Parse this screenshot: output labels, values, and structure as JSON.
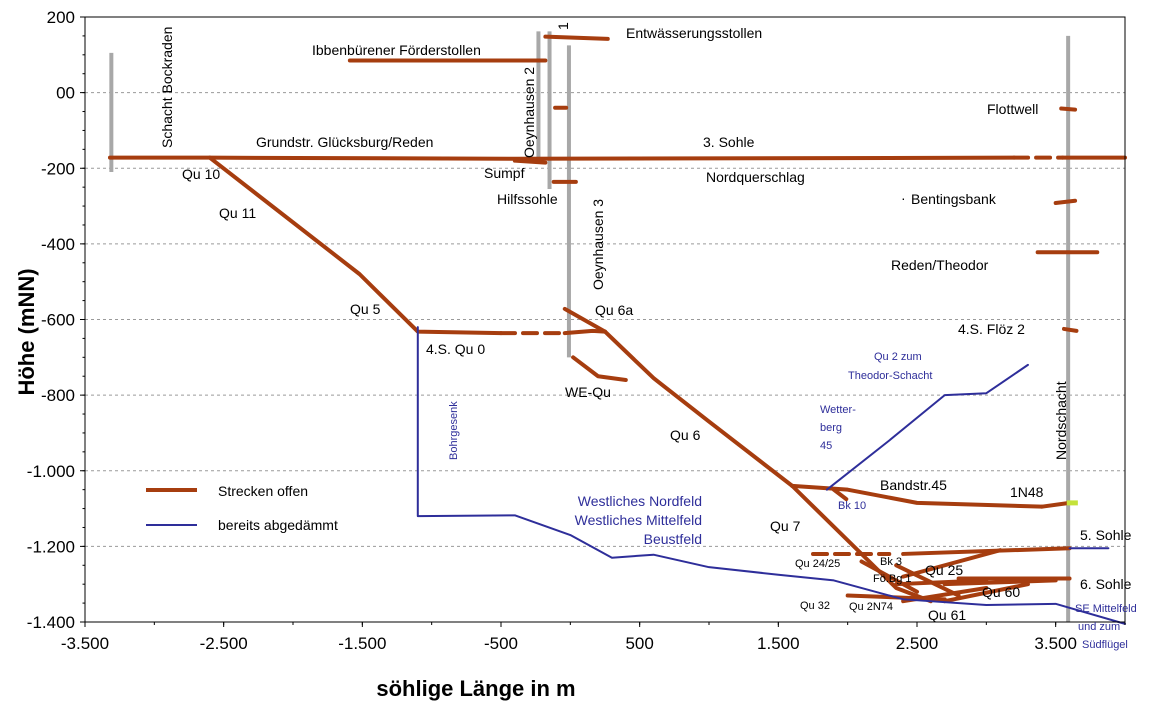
{
  "colors": {
    "open": "#a63d0f",
    "sealed": "#2e2e9a",
    "shaft": "#a8a8a8",
    "marker": "#c4e23a"
  },
  "chart_data": {
    "type": "line",
    "xlabel": "söhlige Länge in m",
    "ylabel": "Höhe (mNN)",
    "xlim": [
      -3500,
      4000
    ],
    "ylim": [
      -1400,
      200
    ],
    "grid": "horizontal dashed",
    "x_ticks": [
      -3500,
      -2500,
      -1500,
      -500,
      500,
      1500,
      2500,
      3500
    ],
    "x_tick_labels": [
      "-3.500",
      "-2.500",
      "-1.500",
      "-500",
      "500",
      "1.500",
      "2.500",
      "3.500"
    ],
    "y_ticks": [
      200,
      0,
      -200,
      -400,
      -600,
      -800,
      -1000,
      -1200,
      -1400
    ],
    "y_tick_labels": [
      "200",
      "00",
      "-200",
      "-400",
      "-600",
      "-800",
      "-1.000",
      "-1.200",
      "-1.400"
    ],
    "legend": {
      "position": "bottom-left",
      "items": [
        {
          "label": "Strecken offen",
          "series": "open"
        },
        {
          "label": "bereits abgedämmt",
          "series": "sealed"
        }
      ]
    },
    "shafts": [
      {
        "label": "Schacht Bockraden",
        "x": -3310,
        "y_top": 105,
        "y_bottom": -210
      },
      {
        "label": "Oeynhausen 2",
        "x": -230,
        "y_top": 162,
        "y_bottom": -175
      },
      {
        "label": "1",
        "x": -150,
        "y_top": 162,
        "y_bottom": -255
      },
      {
        "label": "Oeynhausen 3",
        "x": -10,
        "y_top": 125,
        "y_bottom": -700
      },
      {
        "label": "Nordschacht",
        "x": 3590,
        "y_top": 150,
        "y_bottom": -1400
      }
    ],
    "series_open": [
      {
        "label": "Ibbenbürener Förderstollen",
        "points": [
          [
            -1590,
            85
          ],
          [
            -180,
            85
          ]
        ]
      },
      {
        "label": "Entwässerungsstollen",
        "points": [
          [
            -180,
            148
          ],
          [
            270,
            142
          ]
        ]
      },
      {
        "label": "",
        "points": [
          [
            -110,
            -40
          ],
          [
            -30,
            -40
          ]
        ]
      },
      {
        "label": "Grundstr. Glücksburg/Reden",
        "points": [
          [
            -3320,
            -172
          ],
          [
            -2600,
            -172
          ],
          [
            -400,
            -175
          ],
          [
            3200,
            -172
          ]
        ]
      },
      {
        "label": "3. Sohle",
        "points": [
          [
            3200,
            -172
          ],
          [
            3550,
            -172
          ]
        ],
        "dashed": true
      },
      {
        "label": "",
        "points": [
          [
            3550,
            -172
          ],
          [
            4000,
            -172
          ]
        ]
      },
      {
        "label": "Sumpf",
        "points": [
          [
            -400,
            -180
          ],
          [
            -180,
            -185
          ]
        ]
      },
      {
        "label": "Hilfssohle",
        "points": [
          [
            -120,
            -236
          ],
          [
            40,
            -236
          ]
        ]
      },
      {
        "label": "Flottwell",
        "points": [
          [
            3540,
            -42
          ],
          [
            3640,
            -45
          ]
        ]
      },
      {
        "label": "Bentingsbank",
        "points": [
          [
            3500,
            -292
          ],
          [
            3640,
            -286
          ]
        ]
      },
      {
        "label": "Reden/Theodor",
        "points": [
          [
            3370,
            -422
          ],
          [
            3800,
            -422
          ]
        ]
      },
      {
        "label": "4.S. Flöz 2",
        "points": [
          [
            3560,
            -625
          ],
          [
            3650,
            -630
          ]
        ]
      },
      {
        "label": "Qu 10 / Qu 11 / Qu 5",
        "points": [
          [
            -2600,
            -172
          ],
          [
            -1520,
            -480
          ],
          [
            -1100,
            -632
          ],
          [
            -500,
            -636
          ]
        ]
      },
      {
        "label": "4.S. Qu 0",
        "points": [
          [
            -500,
            -636
          ],
          [
            -40,
            -636
          ]
        ],
        "dashed": true
      },
      {
        "label": "",
        "points": [
          [
            -40,
            -636
          ],
          [
            160,
            -630
          ],
          [
            250,
            -632
          ]
        ]
      },
      {
        "label": "Qu 6a",
        "points": [
          [
            -40,
            -572
          ],
          [
            250,
            -632
          ]
        ]
      },
      {
        "label": "WE-Qu",
        "points": [
          [
            20,
            -700
          ],
          [
            200,
            -750
          ],
          [
            400,
            -760
          ]
        ]
      },
      {
        "label": "Qu 6",
        "points": [
          [
            250,
            -632
          ],
          [
            600,
            -755
          ],
          [
            1000,
            -870
          ],
          [
            1600,
            -1040
          ]
        ]
      },
      {
        "label": "Bandstr.45",
        "points": [
          [
            1600,
            -1040
          ],
          [
            2000,
            -1050
          ],
          [
            2500,
            -1085
          ],
          [
            3400,
            -1095
          ]
        ]
      },
      {
        "label": "1N48",
        "points": [
          [
            3400,
            -1095
          ],
          [
            3600,
            -1085
          ]
        ]
      },
      {
        "label": "Bk 10",
        "points": [
          [
            1900,
            -1050
          ],
          [
            1990,
            -1075
          ]
        ]
      },
      {
        "label": "Qu 7",
        "points": [
          [
            1600,
            -1040
          ],
          [
            2350,
            -1310
          ],
          [
            2600,
            -1345
          ]
        ]
      },
      {
        "label": "",
        "points": [
          [
            1750,
            -1220
          ],
          [
            2300,
            -1220
          ]
        ],
        "dashed": true
      },
      {
        "label": "5. Sohle",
        "points": [
          [
            2400,
            -1220
          ],
          [
            3600,
            -1205
          ]
        ]
      },
      {
        "label": "Qu 25",
        "points": [
          [
            2400,
            -1280
          ],
          [
            3100,
            -1210
          ]
        ]
      },
      {
        "label": "Qu 24/25",
        "points": [
          [
            2100,
            -1240
          ],
          [
            2500,
            -1320
          ]
        ]
      },
      {
        "label": "Bk 3",
        "points": [
          [
            2350,
            -1250
          ],
          [
            2800,
            -1330
          ]
        ]
      },
      {
        "label": "Fö.Bg 1",
        "points": [
          [
            2350,
            -1300
          ],
          [
            3000,
            -1290
          ]
        ]
      },
      {
        "label": "6. Sohle",
        "points": [
          [
            2800,
            -1285
          ],
          [
            3600,
            -1285
          ]
        ]
      },
      {
        "label": "Qu 60",
        "points": [
          [
            2700,
            -1300
          ],
          [
            3500,
            -1290
          ]
        ]
      },
      {
        "label": "Qu 32",
        "points": [
          [
            2000,
            -1330
          ],
          [
            2700,
            -1340
          ]
        ]
      },
      {
        "label": "Qu 2N74",
        "points": [
          [
            2400,
            -1345
          ],
          [
            3000,
            -1310
          ]
        ]
      },
      {
        "label": "Qu 61",
        "points": [
          [
            2700,
            -1345
          ],
          [
            3300,
            -1300
          ]
        ]
      }
    ],
    "series_sealed": [
      {
        "label": "Bohrgesenk",
        "points": [
          [
            -1100,
            -620
          ],
          [
            -1100,
            -1120
          ],
          [
            -400,
            -1118
          ],
          [
            0,
            -1170
          ],
          [
            300,
            -1230
          ],
          [
            600,
            -1222
          ],
          [
            1000,
            -1255
          ],
          [
            1500,
            -1275
          ],
          [
            1900,
            -1290
          ],
          [
            2400,
            -1340
          ],
          [
            3000,
            -1355
          ],
          [
            3500,
            -1352
          ],
          [
            4000,
            -1405
          ]
        ]
      },
      {
        "label": "Wetter-berg 45",
        "points": [
          [
            1850,
            -1050
          ],
          [
            2300,
            -920
          ],
          [
            2700,
            -800
          ],
          [
            3000,
            -795
          ],
          [
            3300,
            -720
          ]
        ]
      },
      {
        "label": "",
        "points": [
          [
            3600,
            -1205
          ],
          [
            3880,
            -1205
          ]
        ]
      }
    ],
    "markers": [
      {
        "label": "",
        "x": 3580,
        "y": -1085,
        "x2": 3660,
        "y2": -1085
      }
    ],
    "annotations": {
      "schacht_bockraden": "Schacht Bockraden",
      "oeynhausen2": "Oeynhausen 2",
      "shaft1": "1",
      "oeynhausen3": "Oeynhausen 3",
      "nordschacht": "Nordschacht",
      "entwaesserung": "Entwässerungsstollen",
      "foerderstollen": "Ibbenbürener Förderstollen",
      "flottwell": "Flottwell",
      "grundstr": "Grundstr. Glücksburg/Reden",
      "sohle3": "3. Sohle",
      "qu10": "Qu 10",
      "sumpf": "Sumpf",
      "nordquerschlag": "Nordquerschlag",
      "hilfssohle": "Hilfssohle",
      "bentingsbank": "Bentingsbank",
      "qu11": "Qu 11",
      "reden_theodor": "Reden/Theodor",
      "qu5": "Qu 5",
      "qu6a": "Qu 6a",
      "floez2": "4.S. Flöz 2",
      "qu0": "4.S. Qu 0",
      "qu2_zum": "Qu 2 zum",
      "theodor_schacht": "Theodor-Schacht",
      "we_qu": "WE-Qu",
      "wetter": "Wetter-",
      "berg": "berg",
      "w45": "45",
      "bohrgesenk": "Bohrgesenk",
      "qu6": "Qu 6",
      "bandstr45": "Bandstr.45",
      "n48": "1N48",
      "bk10": "Bk 10",
      "westl_nordfeld": "Westliches Nordfeld",
      "westl_mittelfeld": "Westliches Mittelfeld",
      "beustfeld": "Beustfeld",
      "qu7": "Qu 7",
      "sohle5": "5. Sohle",
      "qu2425": "Qu 24/25",
      "bk3": "Bk 3",
      "foe_bg1": "Fö.Bg 1",
      "qu25": "Qu 25",
      "sohle6": "6. Sohle",
      "qu60": "Qu 60",
      "qu32": "Qu 32",
      "qu2n74": "Qu 2N74",
      "qu61": "Qu 61",
      "se_mittelfeld": "SE Mittelfeld",
      "und_zum": "und zum",
      "suedfluegel": "Südflügel"
    }
  }
}
